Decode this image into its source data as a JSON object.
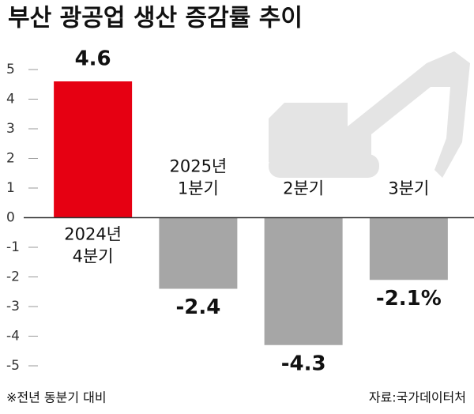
{
  "chart_data": {
    "type": "bar",
    "title": "부산 광공업 생산 증감률 추이",
    "categories": [
      [
        "2024년",
        "4분기"
      ],
      [
        "2025년",
        "1분기"
      ],
      [
        "2분기"
      ],
      [
        "3분기"
      ]
    ],
    "values": [
      4.6,
      -2.4,
      -4.3,
      -2.1
    ],
    "value_labels": [
      "4.6",
      "-2.4",
      "-4.3",
      "-2.1%"
    ],
    "colors": [
      "#e60012",
      "#a6a6a6",
      "#a6a6a6",
      "#a6a6a6"
    ],
    "ylim": [
      -5.4,
      5.6
    ],
    "yticks": [
      5,
      4,
      3,
      2,
      1,
      0,
      -1,
      -2,
      -3,
      -4,
      -5
    ],
    "note": "※전년 동분기 대비",
    "source": "자료:국가데이터처"
  }
}
